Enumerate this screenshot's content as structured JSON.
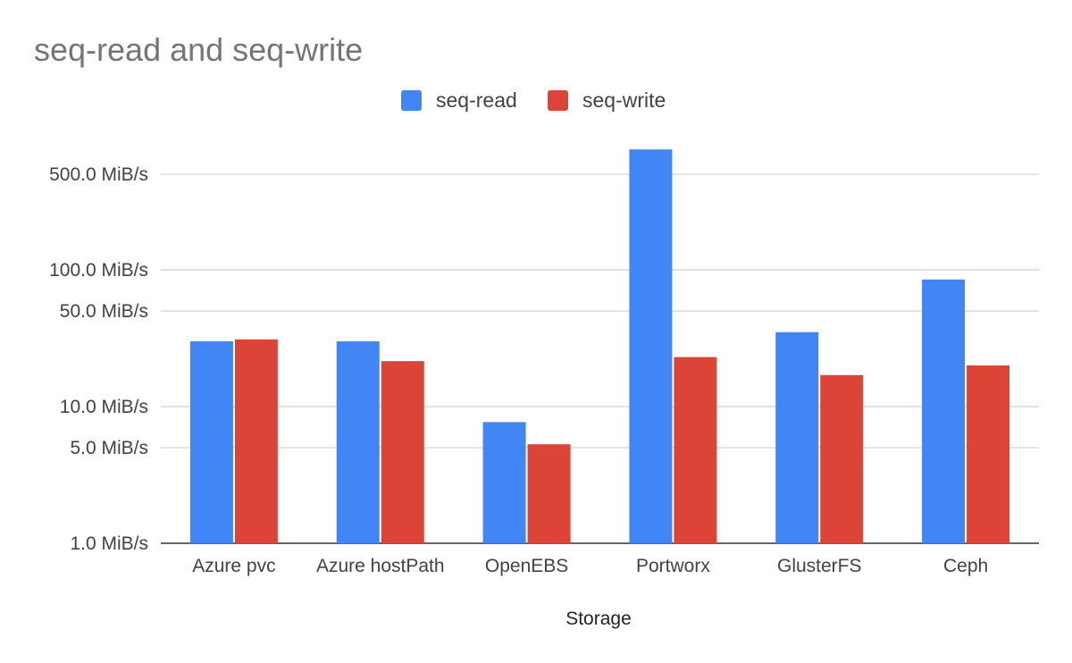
{
  "chart_data": {
    "type": "bar",
    "title": "seq-read and seq-write",
    "xlabel": "Storage",
    "ylabel": "",
    "y_scale": "log",
    "ylim": [
      1,
      760
    ],
    "y_ticks": [
      1,
      5,
      10,
      50,
      100,
      500
    ],
    "y_tick_labels": [
      "1.0 MiB/s",
      "5.0 MiB/s",
      "10.0 MiB/s",
      "50.0 MiB/s",
      "100.0 MiB/s",
      "500.0 MiB/s"
    ],
    "grid": true,
    "legend_position": "top-center",
    "categories": [
      "Azure pvc",
      "Azure hostPath",
      "OpenEBS",
      "Portworx",
      "GlusterFS",
      "Ceph"
    ],
    "series": [
      {
        "name": "seq-read",
        "color": "#4285f4",
        "values": [
          30.0,
          30.0,
          7.7,
          760.0,
          35.0,
          85.0
        ]
      },
      {
        "name": "seq-write",
        "color": "#db4437",
        "values": [
          31.0,
          21.5,
          5.3,
          23.0,
          17.0,
          20.0
        ]
      }
    ]
  }
}
